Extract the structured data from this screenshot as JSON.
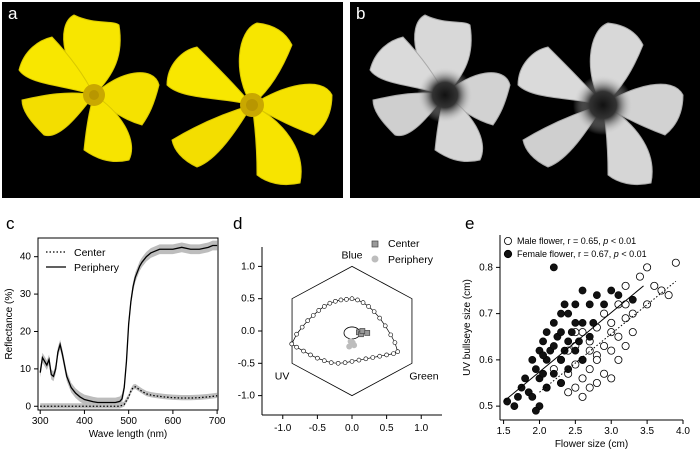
{
  "panel_labels": {
    "a": "a",
    "b": "b",
    "c": "c",
    "d": "d",
    "e": "e"
  },
  "colors": {
    "flower_yellow": "#f7e600",
    "flower_center": "#c9a800",
    "photo_bg": "#000000",
    "gray_fill": "#bdbdbd",
    "uv_flower": "#d8d8d8"
  },
  "chart_data": [
    {
      "id": "c",
      "type": "line",
      "title": "",
      "xlabel": "Wave length (nm)",
      "ylabel": "Reflectance (%)",
      "xlim": [
        295,
        702
      ],
      "ylim": [
        -1,
        45
      ],
      "xticks": [
        300,
        400,
        500,
        600,
        700
      ],
      "yticks": [
        0,
        10,
        20,
        30,
        40
      ],
      "legend": {
        "position": "top-left",
        "entries": [
          "Center",
          "Periphery"
        ]
      },
      "series": [
        {
          "name": "Periphery",
          "style": "solid",
          "x": [
            300,
            305,
            310,
            315,
            320,
            325,
            330,
            335,
            340,
            345,
            350,
            360,
            370,
            380,
            390,
            400,
            410,
            420,
            430,
            440,
            450,
            460,
            470,
            480,
            485,
            490,
            495,
            500,
            505,
            510,
            515,
            520,
            525,
            530,
            540,
            550,
            560,
            570,
            580,
            600,
            620,
            640,
            660,
            680,
            690,
            700
          ],
          "y": [
            9,
            13,
            12,
            11,
            12.5,
            8.5,
            8,
            10,
            14.5,
            16.5,
            14,
            8,
            5,
            3.5,
            2.5,
            1.8,
            1.5,
            1.2,
            1,
            1,
            1,
            1,
            1,
            1.3,
            2,
            5,
            12,
            22,
            28,
            32,
            34.5,
            36,
            37.5,
            38.5,
            40,
            41,
            41.5,
            42,
            42,
            42,
            42.5,
            42,
            42,
            42.5,
            43,
            43
          ]
        },
        {
          "name": "Center",
          "style": "dotted",
          "x": [
            300,
            320,
            340,
            360,
            380,
            400,
            420,
            440,
            460,
            480,
            490,
            500,
            505,
            510,
            515,
            520,
            530,
            540,
            550,
            560,
            580,
            600,
            620,
            640,
            660,
            680,
            700
          ],
          "y": [
            0,
            0,
            0,
            0,
            0,
            0,
            0,
            0,
            0,
            0,
            0.5,
            2.5,
            4,
            5,
            5.2,
            4.8,
            4,
            3.3,
            3,
            2.8,
            2.5,
            2.3,
            2.2,
            2.2,
            2.3,
            2.5,
            2.8
          ]
        }
      ]
    },
    {
      "id": "d",
      "type": "scatter",
      "title": "",
      "xlabel": "",
      "ylabel": "",
      "xlim": [
        -1.3,
        1.3
      ],
      "ylim": [
        -1.3,
        1.3
      ],
      "xticks": [
        -1.0,
        -0.5,
        0.0,
        0.5,
        1.0
      ],
      "yticks": [
        1.0,
        0.5,
        0.0,
        -0.5,
        -1.0
      ],
      "tick_labels_x": [
        "-1.0",
        "-0.5",
        "0.0",
        "0.5",
        "1.0"
      ],
      "tick_labels_y": [
        "1.0",
        "0.5",
        "0.0",
        "-0.5",
        "-1.0"
      ],
      "vertex_labels": {
        "blue": "Blue",
        "uv": "UV",
        "green": "Green"
      },
      "legend": {
        "position": "top-right",
        "entries": [
          "Center",
          "Periphery"
        ]
      },
      "locus": {
        "x": [
          -0.87,
          -0.8,
          -0.72,
          -0.64,
          -0.56,
          -0.48,
          -0.4,
          -0.32,
          -0.24,
          -0.16,
          -0.08,
          0.0,
          0.08,
          0.16,
          0.24,
          0.32,
          0.4,
          0.48,
          0.56,
          0.62,
          0.66,
          0.6,
          0.5,
          0.4,
          0.3,
          0.2,
          0.1,
          0.0,
          -0.1,
          -0.2,
          -0.3,
          -0.4,
          -0.5,
          -0.6,
          -0.7,
          -0.8,
          -0.87
        ],
        "y": [
          -0.2,
          -0.05,
          0.06,
          0.16,
          0.24,
          0.32,
          0.38,
          0.43,
          0.46,
          0.48,
          0.49,
          0.5,
          0.48,
          0.44,
          0.38,
          0.3,
          0.2,
          0.08,
          -0.06,
          -0.18,
          -0.32,
          -0.35,
          -0.37,
          -0.39,
          -0.41,
          -0.43,
          -0.45,
          -0.47,
          -0.49,
          -0.5,
          -0.49,
          -0.46,
          -0.42,
          -0.37,
          -0.31,
          -0.25,
          -0.2
        ]
      },
      "center_points": {
        "x": [
          0.1,
          0.13,
          0.15,
          0.22
        ],
        "y": [
          -0.02,
          -0.05,
          0.0,
          -0.03
        ]
      },
      "periphery_points": {
        "x": [
          -0.02,
          0.0,
          0.03,
          -0.04,
          0.01
        ],
        "y": [
          -0.16,
          -0.2,
          -0.22,
          -0.24,
          -0.18
        ]
      }
    },
    {
      "id": "e",
      "type": "scatter",
      "title": "",
      "xlabel": "Flower size (cm)",
      "ylabel": "UV bullseye size (cm)",
      "xlim": [
        1.45,
        4.0
      ],
      "ylim": [
        0.47,
        0.87
      ],
      "xticks": [
        1.5,
        2.0,
        2.5,
        3.0,
        3.5,
        4.0
      ],
      "yticks": [
        0.5,
        0.6,
        0.7,
        0.8
      ],
      "legend": {
        "position": "top-left",
        "entries": [
          "Male flower, r = 0.65, ",
          "Female flower, r = 0.67, "
        ],
        "stat_suffix": [
          " < 0.01",
          " < 0.01"
        ],
        "stat_italic": "p"
      },
      "series": [
        {
          "name": "Male flower",
          "marker": "open-circle",
          "x": [
            2.1,
            2.2,
            2.3,
            2.3,
            2.4,
            2.4,
            2.5,
            2.5,
            2.5,
            2.6,
            2.6,
            2.6,
            2.7,
            2.7,
            2.7,
            2.8,
            2.8,
            2.8,
            2.9,
            2.9,
            2.9,
            3.0,
            3.0,
            3.0,
            3.1,
            3.1,
            3.1,
            3.2,
            3.2,
            3.2,
            3.3,
            3.3,
            3.4,
            3.5,
            3.5,
            3.6,
            3.7,
            3.8,
            3.9,
            2.4,
            2.6,
            2.8,
            3.0,
            3.2,
            2.5,
            2.7
          ],
          "y": [
            0.54,
            0.58,
            0.6,
            0.55,
            0.62,
            0.57,
            0.63,
            0.59,
            0.54,
            0.66,
            0.6,
            0.56,
            0.64,
            0.58,
            0.54,
            0.67,
            0.61,
            0.55,
            0.7,
            0.63,
            0.57,
            0.68,
            0.62,
            0.56,
            0.72,
            0.65,
            0.6,
            0.76,
            0.69,
            0.63,
            0.7,
            0.66,
            0.78,
            0.8,
            0.72,
            0.76,
            0.75,
            0.74,
            0.81,
            0.53,
            0.52,
            0.6,
            0.66,
            0.72,
            0.66,
            0.62
          ]
        },
        {
          "name": "Female flower",
          "marker": "filled-circle",
          "x": [
            1.55,
            1.65,
            1.7,
            1.75,
            1.8,
            1.85,
            1.9,
            1.9,
            1.95,
            2.0,
            2.0,
            2.0,
            2.05,
            2.05,
            2.1,
            2.1,
            2.1,
            2.15,
            2.2,
            2.2,
            2.2,
            2.25,
            2.3,
            2.3,
            2.3,
            2.35,
            2.35,
            2.4,
            2.4,
            2.4,
            2.45,
            2.5,
            2.5,
            2.5,
            2.55,
            2.6,
            2.6,
            2.6,
            2.7,
            2.7,
            2.75,
            2.8,
            2.9,
            3.0,
            3.1,
            3.3,
            2.2,
            1.95,
            2.05,
            2.3
          ],
          "y": [
            0.51,
            0.5,
            0.52,
            0.54,
            0.56,
            0.53,
            0.6,
            0.52,
            0.58,
            0.62,
            0.56,
            0.5,
            0.64,
            0.57,
            0.66,
            0.6,
            0.54,
            0.62,
            0.68,
            0.63,
            0.57,
            0.65,
            0.7,
            0.66,
            0.6,
            0.72,
            0.62,
            0.7,
            0.64,
            0.58,
            0.66,
            0.72,
            0.68,
            0.62,
            0.64,
            0.75,
            0.68,
            0.6,
            0.72,
            0.65,
            0.68,
            0.74,
            0.72,
            0.75,
            0.74,
            0.73,
            0.8,
            0.49,
            0.61,
            0.55
          ]
        }
      ],
      "fit_lines": [
        {
          "name": "Male fit",
          "style": "dotted",
          "x": [
            2.0,
            3.9
          ],
          "y": [
            0.53,
            0.77
          ]
        },
        {
          "name": "Female fit",
          "style": "solid",
          "x": [
            1.5,
            3.45
          ],
          "y": [
            0.51,
            0.76
          ]
        }
      ]
    }
  ]
}
